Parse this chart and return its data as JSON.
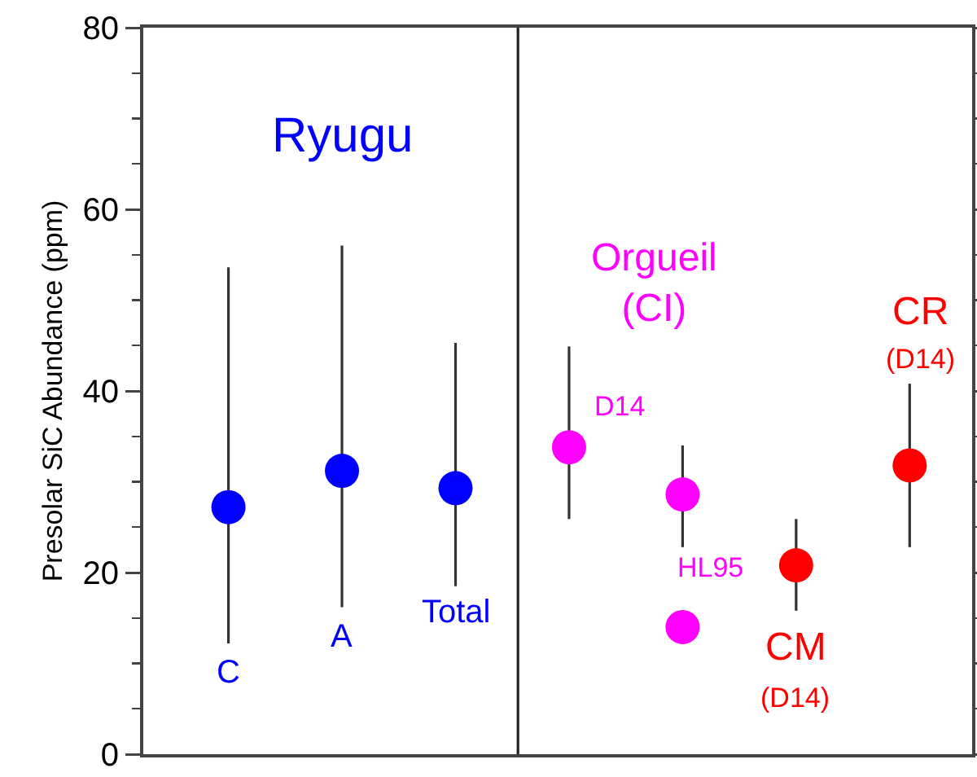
{
  "chart_data": {
    "type": "scatter",
    "ylabel": "Presolar SiC Abundance (ppm)",
    "categories": [
      null,
      null,
      null,
      null,
      null,
      null,
      null
    ],
    "series": [
      {
        "name": "Ryugu",
        "color": "#0000ff",
        "values": [
          27.2,
          31.2,
          29.3,
          null,
          null,
          null,
          null
        ],
        "errors": [
          [
            12.2,
            53.6
          ],
          [
            16.2,
            56
          ],
          [
            18.5,
            45.3
          ],
          null,
          null,
          null,
          null
        ]
      },
      {
        "name": "Orgueil (CI)",
        "color": "#ff00ff",
        "values": [
          null,
          null,
          null,
          33.8,
          28.6,
          null,
          null
        ],
        "errors": [
          null,
          null,
          null,
          [
            25.9,
            44.9
          ],
          [
            22.8,
            34
          ],
          null,
          null
        ]
      },
      {
        "color": "#ff00ff",
        "values": [
          null,
          null,
          null,
          null,
          14,
          null,
          null
        ]
      },
      {
        "color": "#ff0000",
        "values": [
          null,
          null,
          null,
          null,
          null,
          20.8,
          31.8
        ],
        "errors": [
          null,
          null,
          null,
          null,
          null,
          [
            15.8,
            25.9
          ],
          [
            22.8,
            40.8
          ]
        ]
      }
    ],
    "annotations": [
      "C",
      "A",
      "Total",
      "D14",
      "HL95",
      "CM",
      "(D14)",
      "CR",
      "(D14)"
    ],
    "ylim": [
      0,
      80
    ],
    "yticks": [
      0,
      20,
      40,
      60,
      80
    ],
    "grid": false,
    "legend": false,
    "marker": "circle",
    "tick_labels": "y"
  }
}
